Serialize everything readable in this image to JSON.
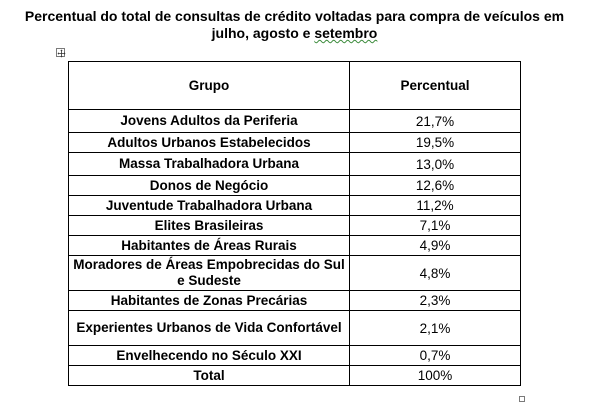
{
  "title": {
    "line1": "Percentual do total de consultas de crédito voltadas para compra de veículos em",
    "line2_prefix": "julho, agosto e ",
    "line2_underlined": "setembro"
  },
  "table": {
    "headers": {
      "group": "Grupo",
      "percent": "Percentual"
    },
    "rows": [
      {
        "group": "Jovens Adultos da Periferia",
        "percent": "21,7%"
      },
      {
        "group": "Adultos Urbanos Estabelecidos",
        "percent": "19,5%"
      },
      {
        "group": "Massa Trabalhadora Urbana",
        "percent": "13,0%"
      },
      {
        "group": "Donos de Negócio",
        "percent": "12,6%"
      },
      {
        "group": "Juventude Trabalhadora Urbana",
        "percent": "11,2%"
      },
      {
        "group": "Elites Brasileiras",
        "percent": "7,1%"
      },
      {
        "group": "Habitantes de Áreas Rurais",
        "percent": "4,9%"
      },
      {
        "group": "Moradores de Áreas Empobrecidas do Sul e Sudeste",
        "percent": "4,8%"
      },
      {
        "group": "Habitantes de Zonas Precárias",
        "percent": "2,3%"
      },
      {
        "group": "Experientes Urbanos de Vida Confortável",
        "percent": "2,1%"
      },
      {
        "group": "Envelhecendo no Século XXI",
        "percent": "0,7%"
      }
    ],
    "total": {
      "group": "Total",
      "percent": "100%"
    }
  }
}
